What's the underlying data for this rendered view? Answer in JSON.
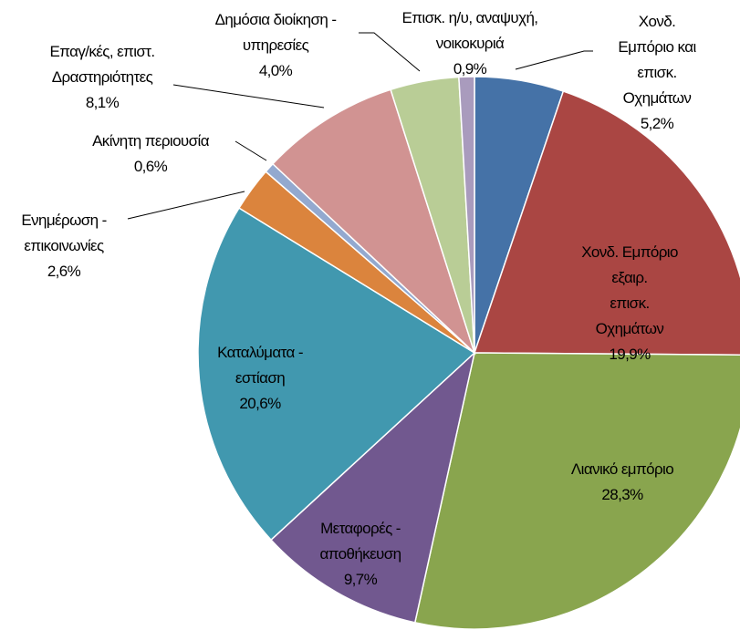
{
  "chart_data": {
    "type": "pie",
    "categories": [
      "Χονδ. Εμπόριο και\nεπισκ. Οχημάτων",
      "Χονδ. Εμπόριο εξαιρ.\nεπισκ. Οχημάτων",
      "Λιανικό εμπόριο",
      "Μεταφορές -\nαποθήκευση",
      "Καταλύματα -\nεστίαση",
      "Ενημέρωση -\nεπικοινωνίες",
      "Ακίνητη περιουσία",
      "Επαγ/κές, επιστ.\nΔραστηριότητες",
      "Δημόσια διοίκηση -\nυπηρεσίες",
      "Επισκ. η/υ, αναψυχή,\nνοικοκυριά"
    ],
    "values": [
      5.2,
      19.9,
      28.3,
      9.7,
      20.6,
      2.6,
      0.6,
      8.1,
      4.0,
      0.9
    ],
    "value_labels": [
      "5,2%",
      "19,9%",
      "28,3%",
      "9,7%",
      "20,6%",
      "2,6%",
      "0,6%",
      "8,1%",
      "4,0%",
      "0,9%"
    ],
    "colors": [
      "#4572a7",
      "#aa4643",
      "#89a54e",
      "#71588f",
      "#4198af",
      "#db843d",
      "#93a9cf",
      "#d19392",
      "#b9cd96",
      "#a99bbd"
    ]
  }
}
